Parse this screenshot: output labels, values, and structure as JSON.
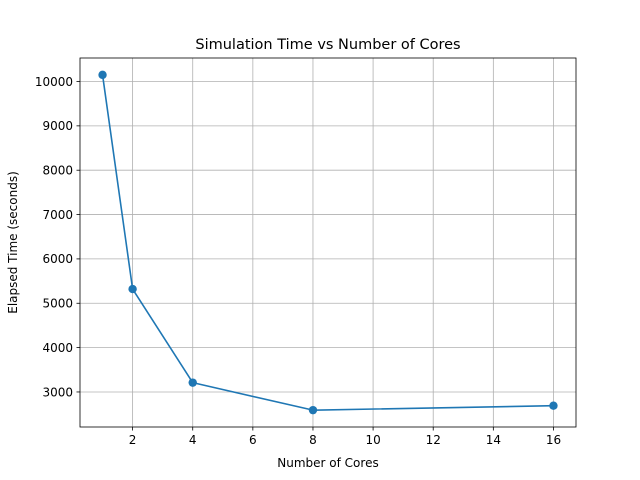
{
  "chart_data": {
    "type": "line",
    "title": "Simulation Time vs Number of Cores",
    "xlabel": "Number of Cores",
    "ylabel": "Elapsed Time (seconds)",
    "x": [
      1,
      2,
      4,
      8,
      16
    ],
    "series": [
      {
        "values": [
          10150,
          5320,
          3210,
          2590,
          2690
        ],
        "color": "#1f77b4",
        "marker": "circle"
      }
    ],
    "xlim": [
      0.25,
      16.75
    ],
    "ylim": [
      2210,
      10530
    ],
    "xticks": [
      2,
      4,
      6,
      8,
      10,
      12,
      14,
      16
    ],
    "yticks": [
      3000,
      4000,
      5000,
      6000,
      7000,
      8000,
      9000,
      10000
    ],
    "grid": true,
    "legend": "none"
  }
}
